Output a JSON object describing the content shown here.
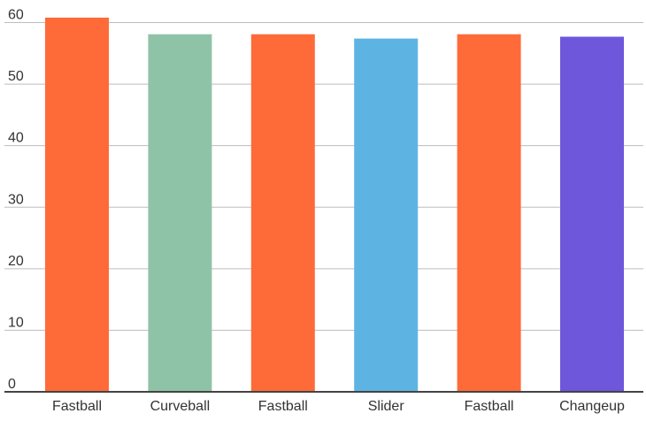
{
  "chart_data": {
    "type": "bar",
    "title": "",
    "xlabel": "",
    "ylabel": "",
    "ylim": [
      0,
      60
    ],
    "yticks": [
      0,
      10,
      20,
      30,
      40,
      50,
      60
    ],
    "grid": true,
    "legend": "none",
    "categories": [
      "Fastball",
      "Curveball",
      "Fastball",
      "Slider",
      "Fastball",
      "Changeup"
    ],
    "values": [
      60.8,
      58.1,
      58.1,
      57.4,
      58.1,
      57.7
    ],
    "colors": [
      "#FF6A39",
      "#8FC3A7",
      "#FF6A39",
      "#5DB4E3",
      "#FF6A39",
      "#6E57DB"
    ]
  },
  "style": {
    "gridline_color": "#bdbdbd",
    "baseline_color": "#444444",
    "label_color": "#333333"
  }
}
